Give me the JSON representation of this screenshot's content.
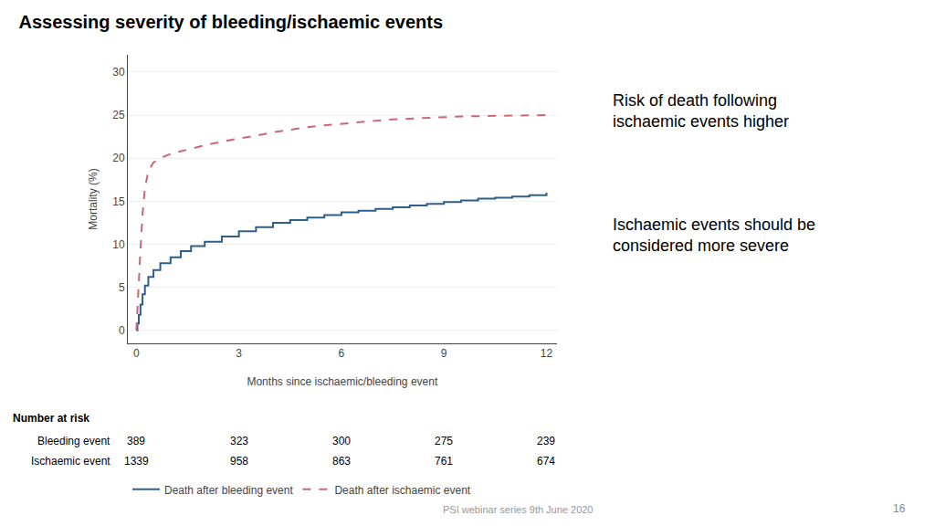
{
  "chart_data": {
    "type": "line",
    "title": "Assessing severity of bleeding/ischaemic events",
    "xlabel": "Months since ischaemic/bleeding event",
    "ylabel": "Mortality (%)",
    "xlim": [
      -0.25,
      12.3
    ],
    "ylim": [
      -1.5,
      32
    ],
    "xticks": [
      0,
      3,
      6,
      9,
      12
    ],
    "yticks": [
      0,
      5,
      10,
      15,
      20,
      25,
      30
    ],
    "grid": "y",
    "legend": "bottom",
    "series": [
      {
        "name": "Death after bleeding event",
        "color": "#2e5f8a",
        "type": "step",
        "line_style": "solid",
        "x": [
          0.0,
          0.03,
          0.07,
          0.12,
          0.18,
          0.25,
          0.35,
          0.5,
          0.7,
          1.0,
          1.3,
          1.6,
          2.0,
          2.5,
          3.0,
          3.5,
          4.0,
          4.5,
          5.0,
          5.5,
          6.0,
          6.5,
          7.0,
          7.5,
          8.0,
          8.5,
          9.0,
          9.5,
          10.0,
          10.5,
          11.0,
          11.5,
          12.0
        ],
        "values": [
          0.0,
          0.8,
          1.8,
          3.0,
          4.2,
          5.2,
          6.2,
          7.0,
          7.8,
          8.5,
          9.2,
          9.8,
          10.3,
          10.9,
          11.5,
          12.0,
          12.5,
          12.8,
          13.1,
          13.4,
          13.7,
          13.9,
          14.1,
          14.3,
          14.5,
          14.7,
          14.9,
          15.1,
          15.3,
          15.4,
          15.55,
          15.7,
          16.0
        ]
      },
      {
        "name": "Death after ischaemic event",
        "color": "#cc6677",
        "type": "line",
        "line_style": "dashed",
        "x": [
          0.0,
          0.03,
          0.07,
          0.12,
          0.18,
          0.25,
          0.35,
          0.5,
          0.7,
          1.0,
          1.5,
          2.0,
          2.5,
          3.0,
          3.5,
          4.0,
          4.5,
          5.0,
          5.5,
          6.0,
          6.5,
          7.0,
          7.5,
          8.0,
          8.5,
          9.0,
          9.5,
          10.0,
          10.5,
          11.0,
          11.5,
          12.0
        ],
        "values": [
          0.0,
          2.0,
          5.5,
          9.5,
          13.5,
          16.5,
          18.5,
          19.5,
          20.0,
          20.5,
          21.0,
          21.5,
          21.9,
          22.3,
          22.6,
          23.0,
          23.3,
          23.6,
          23.8,
          24.0,
          24.2,
          24.35,
          24.5,
          24.6,
          24.7,
          24.78,
          24.84,
          24.88,
          24.91,
          24.94,
          24.96,
          25.0
        ]
      }
    ],
    "annotations": [
      "Risk of death following\nischaemic events higher",
      "Ischaemic events should be\nconsidered more severe"
    ],
    "number_at_risk": {
      "label": "Number at risk",
      "x": [
        0,
        3,
        6,
        9,
        12
      ],
      "rows": [
        {
          "name": "Bleeding event",
          "values": [
            389,
            323,
            300,
            275,
            239
          ]
        },
        {
          "name": "Ischaemic event",
          "values": [
            1339,
            958,
            863,
            761,
            674
          ]
        }
      ]
    },
    "footer": "PSI webinar series 9th June 2020",
    "page_number": "16"
  }
}
